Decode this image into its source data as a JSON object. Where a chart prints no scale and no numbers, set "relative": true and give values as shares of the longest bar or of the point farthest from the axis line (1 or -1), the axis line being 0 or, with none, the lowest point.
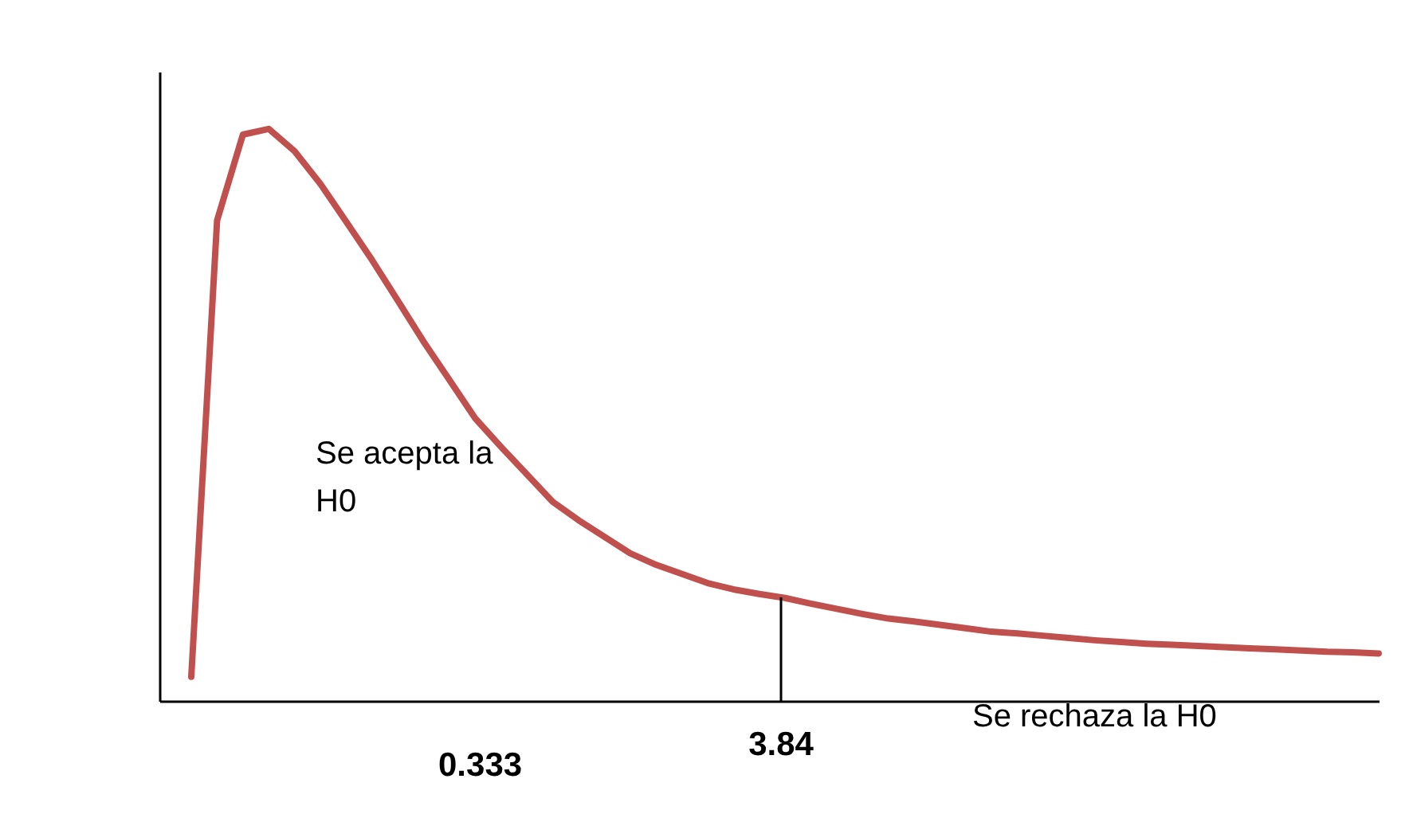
{
  "chart_data": {
    "type": "line",
    "relative": true,
    "color": "#c0504d",
    "categories": [
      null,
      null,
      null,
      null,
      null,
      null,
      null,
      null,
      null,
      null,
      null,
      null,
      null,
      null,
      null,
      null,
      null,
      null,
      null,
      null,
      null,
      null,
      null,
      null,
      null,
      null,
      null,
      null,
      null,
      null,
      null,
      null,
      null,
      null,
      null,
      null,
      null,
      null,
      null,
      null,
      null,
      null,
      null,
      null,
      null,
      null,
      null
    ],
    "values": [
      0.042,
      0.84,
      0.99,
      1.0,
      0.961,
      0.904,
      0.838,
      0.771,
      0.7,
      0.628,
      0.561,
      0.494,
      0.444,
      0.396,
      0.348,
      0.316,
      0.287,
      0.258,
      0.238,
      0.222,
      0.206,
      0.195,
      0.187,
      0.18,
      0.17,
      0.161,
      0.152,
      0.144,
      0.139,
      0.133,
      0.127,
      0.121,
      0.118,
      0.114,
      0.11,
      0.106,
      0.103,
      0.1,
      0.098,
      0.096,
      0.094,
      0.092,
      0.09,
      0.088,
      0.086,
      0.085,
      0.083
    ],
    "annotations": [
      "Se acepta la\nH0",
      "Se rechaza la H0",
      "0.333",
      "3.84"
    ]
  }
}
